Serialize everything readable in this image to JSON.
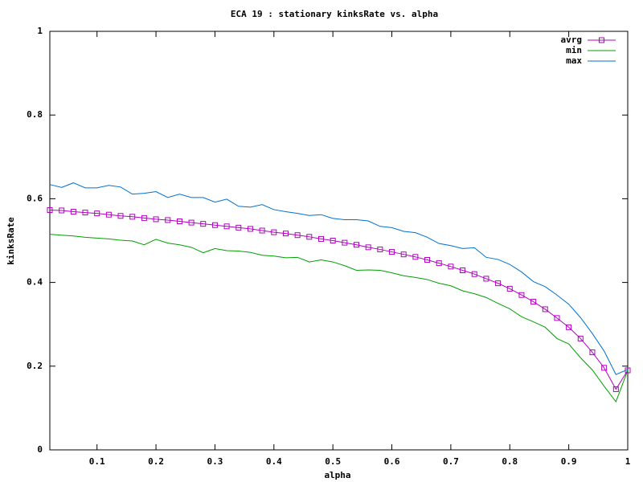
{
  "chart_data": {
    "type": "line",
    "title": "ECA 19 : stationary kinksRate vs. alpha",
    "x_label": "alpha",
    "y_label": "kinksRate",
    "x": [
      0.02,
      0.04,
      0.06,
      0.08,
      0.1,
      0.12,
      0.14,
      0.16,
      0.18,
      0.2,
      0.22,
      0.24,
      0.26,
      0.28,
      0.3,
      0.32,
      0.34,
      0.36,
      0.38,
      0.4,
      0.42,
      0.44,
      0.46,
      0.48,
      0.5,
      0.52,
      0.54,
      0.56,
      0.58,
      0.6,
      0.62,
      0.64,
      0.66,
      0.68,
      0.7,
      0.72,
      0.74,
      0.76,
      0.78,
      0.8,
      0.82,
      0.84,
      0.86,
      0.88,
      0.9,
      0.92,
      0.94,
      0.96,
      0.98,
      1.0
    ],
    "series": [
      {
        "name": "avrg",
        "color": "#b000c0",
        "marker": "square",
        "values": [
          0.573,
          0.572,
          0.569,
          0.567,
          0.565,
          0.562,
          0.559,
          0.557,
          0.554,
          0.551,
          0.549,
          0.546,
          0.543,
          0.54,
          0.537,
          0.534,
          0.531,
          0.528,
          0.524,
          0.52,
          0.517,
          0.513,
          0.509,
          0.504,
          0.5,
          0.495,
          0.49,
          0.484,
          0.479,
          0.473,
          0.467,
          0.461,
          0.454,
          0.446,
          0.438,
          0.429,
          0.42,
          0.409,
          0.398,
          0.385,
          0.37,
          0.354,
          0.336,
          0.315,
          0.293,
          0.266,
          0.233,
          0.196,
          0.145,
          0.19
        ]
      },
      {
        "name": "min",
        "color": "#00a000",
        "values": [
          0.515,
          0.513,
          0.511,
          0.508,
          0.506,
          0.504,
          0.501,
          0.499,
          0.49,
          0.503,
          0.494,
          0.49,
          0.484,
          0.471,
          0.481,
          0.476,
          0.475,
          0.472,
          0.465,
          0.463,
          0.459,
          0.46,
          0.449,
          0.454,
          0.449,
          0.44,
          0.429,
          0.43,
          0.429,
          0.423,
          0.416,
          0.412,
          0.407,
          0.398,
          0.392,
          0.38,
          0.373,
          0.364,
          0.35,
          0.337,
          0.318,
          0.306,
          0.293,
          0.266,
          0.253,
          0.22,
          0.191,
          0.152,
          0.115,
          0.19
        ]
      },
      {
        "name": "max",
        "color": "#0070d0",
        "values": [
          0.634,
          0.627,
          0.638,
          0.626,
          0.626,
          0.632,
          0.628,
          0.611,
          0.613,
          0.617,
          0.603,
          0.611,
          0.603,
          0.603,
          0.592,
          0.599,
          0.582,
          0.58,
          0.586,
          0.574,
          0.569,
          0.565,
          0.56,
          0.562,
          0.553,
          0.55,
          0.55,
          0.547,
          0.534,
          0.531,
          0.522,
          0.519,
          0.508,
          0.493,
          0.488,
          0.481,
          0.483,
          0.46,
          0.455,
          0.443,
          0.425,
          0.402,
          0.39,
          0.37,
          0.348,
          0.316,
          0.278,
          0.236,
          0.18,
          0.192
        ]
      }
    ],
    "xlim": [
      0.02,
      1
    ],
    "ylim": [
      0,
      1
    ],
    "xticks": [
      0.1,
      0.2,
      0.3,
      0.4,
      0.5,
      0.6,
      0.7,
      0.8,
      0.9,
      1
    ],
    "yticks": [
      0,
      0.2,
      0.4,
      0.6,
      0.8,
      1
    ],
    "grid": false,
    "legend": "top-right"
  }
}
